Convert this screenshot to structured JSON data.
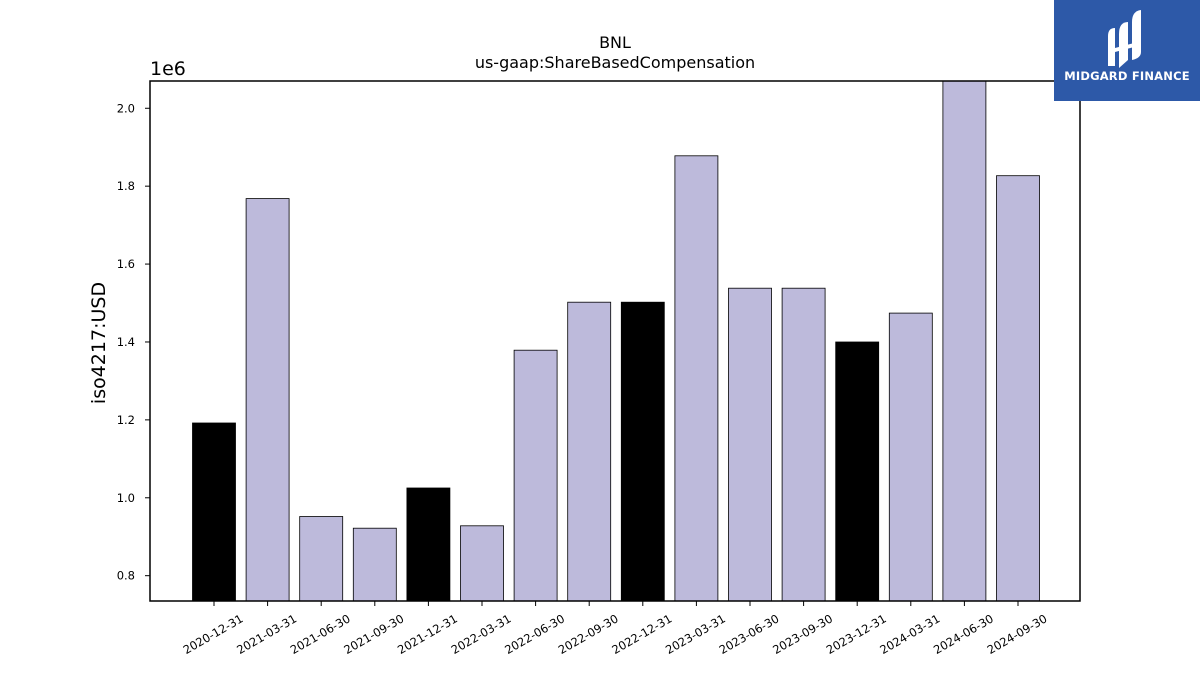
{
  "chart_data": {
    "type": "bar",
    "title": "BNL",
    "subtitle": "us-gaap:ShareBasedCompensation",
    "ylabel": "iso4217:USD",
    "xlabel": "",
    "scale_label": "1e6",
    "ylim": [
      0.735,
      2.07
    ],
    "yticks": [
      "0.8",
      "1.0",
      "1.2",
      "1.4",
      "1.6",
      "1.8",
      "2.0"
    ],
    "categories": [
      "2020-12-31",
      "2021-03-31",
      "2021-06-30",
      "2021-09-30",
      "2021-12-31",
      "2022-03-31",
      "2022-06-30",
      "2022-09-30",
      "2022-12-31",
      "2023-03-31",
      "2023-06-30",
      "2023-09-30",
      "2023-12-31",
      "2024-03-31",
      "2024-06-30",
      "2024-09-30"
    ],
    "values": [
      1.192,
      1.768,
      0.952,
      0.922,
      1.025,
      0.928,
      1.379,
      1.502,
      1.502,
      1.878,
      1.538,
      1.538,
      1.4,
      1.474,
      2.07,
      1.827
    ],
    "year_end": [
      true,
      false,
      false,
      false,
      true,
      false,
      false,
      false,
      true,
      false,
      false,
      false,
      true,
      false,
      false,
      false
    ],
    "colors": {
      "quarter": "#bdbadb",
      "year_end": "#000000",
      "edge": "#000000"
    },
    "grid": false
  },
  "logo": {
    "text": "MIDGARD FINANCE"
  }
}
